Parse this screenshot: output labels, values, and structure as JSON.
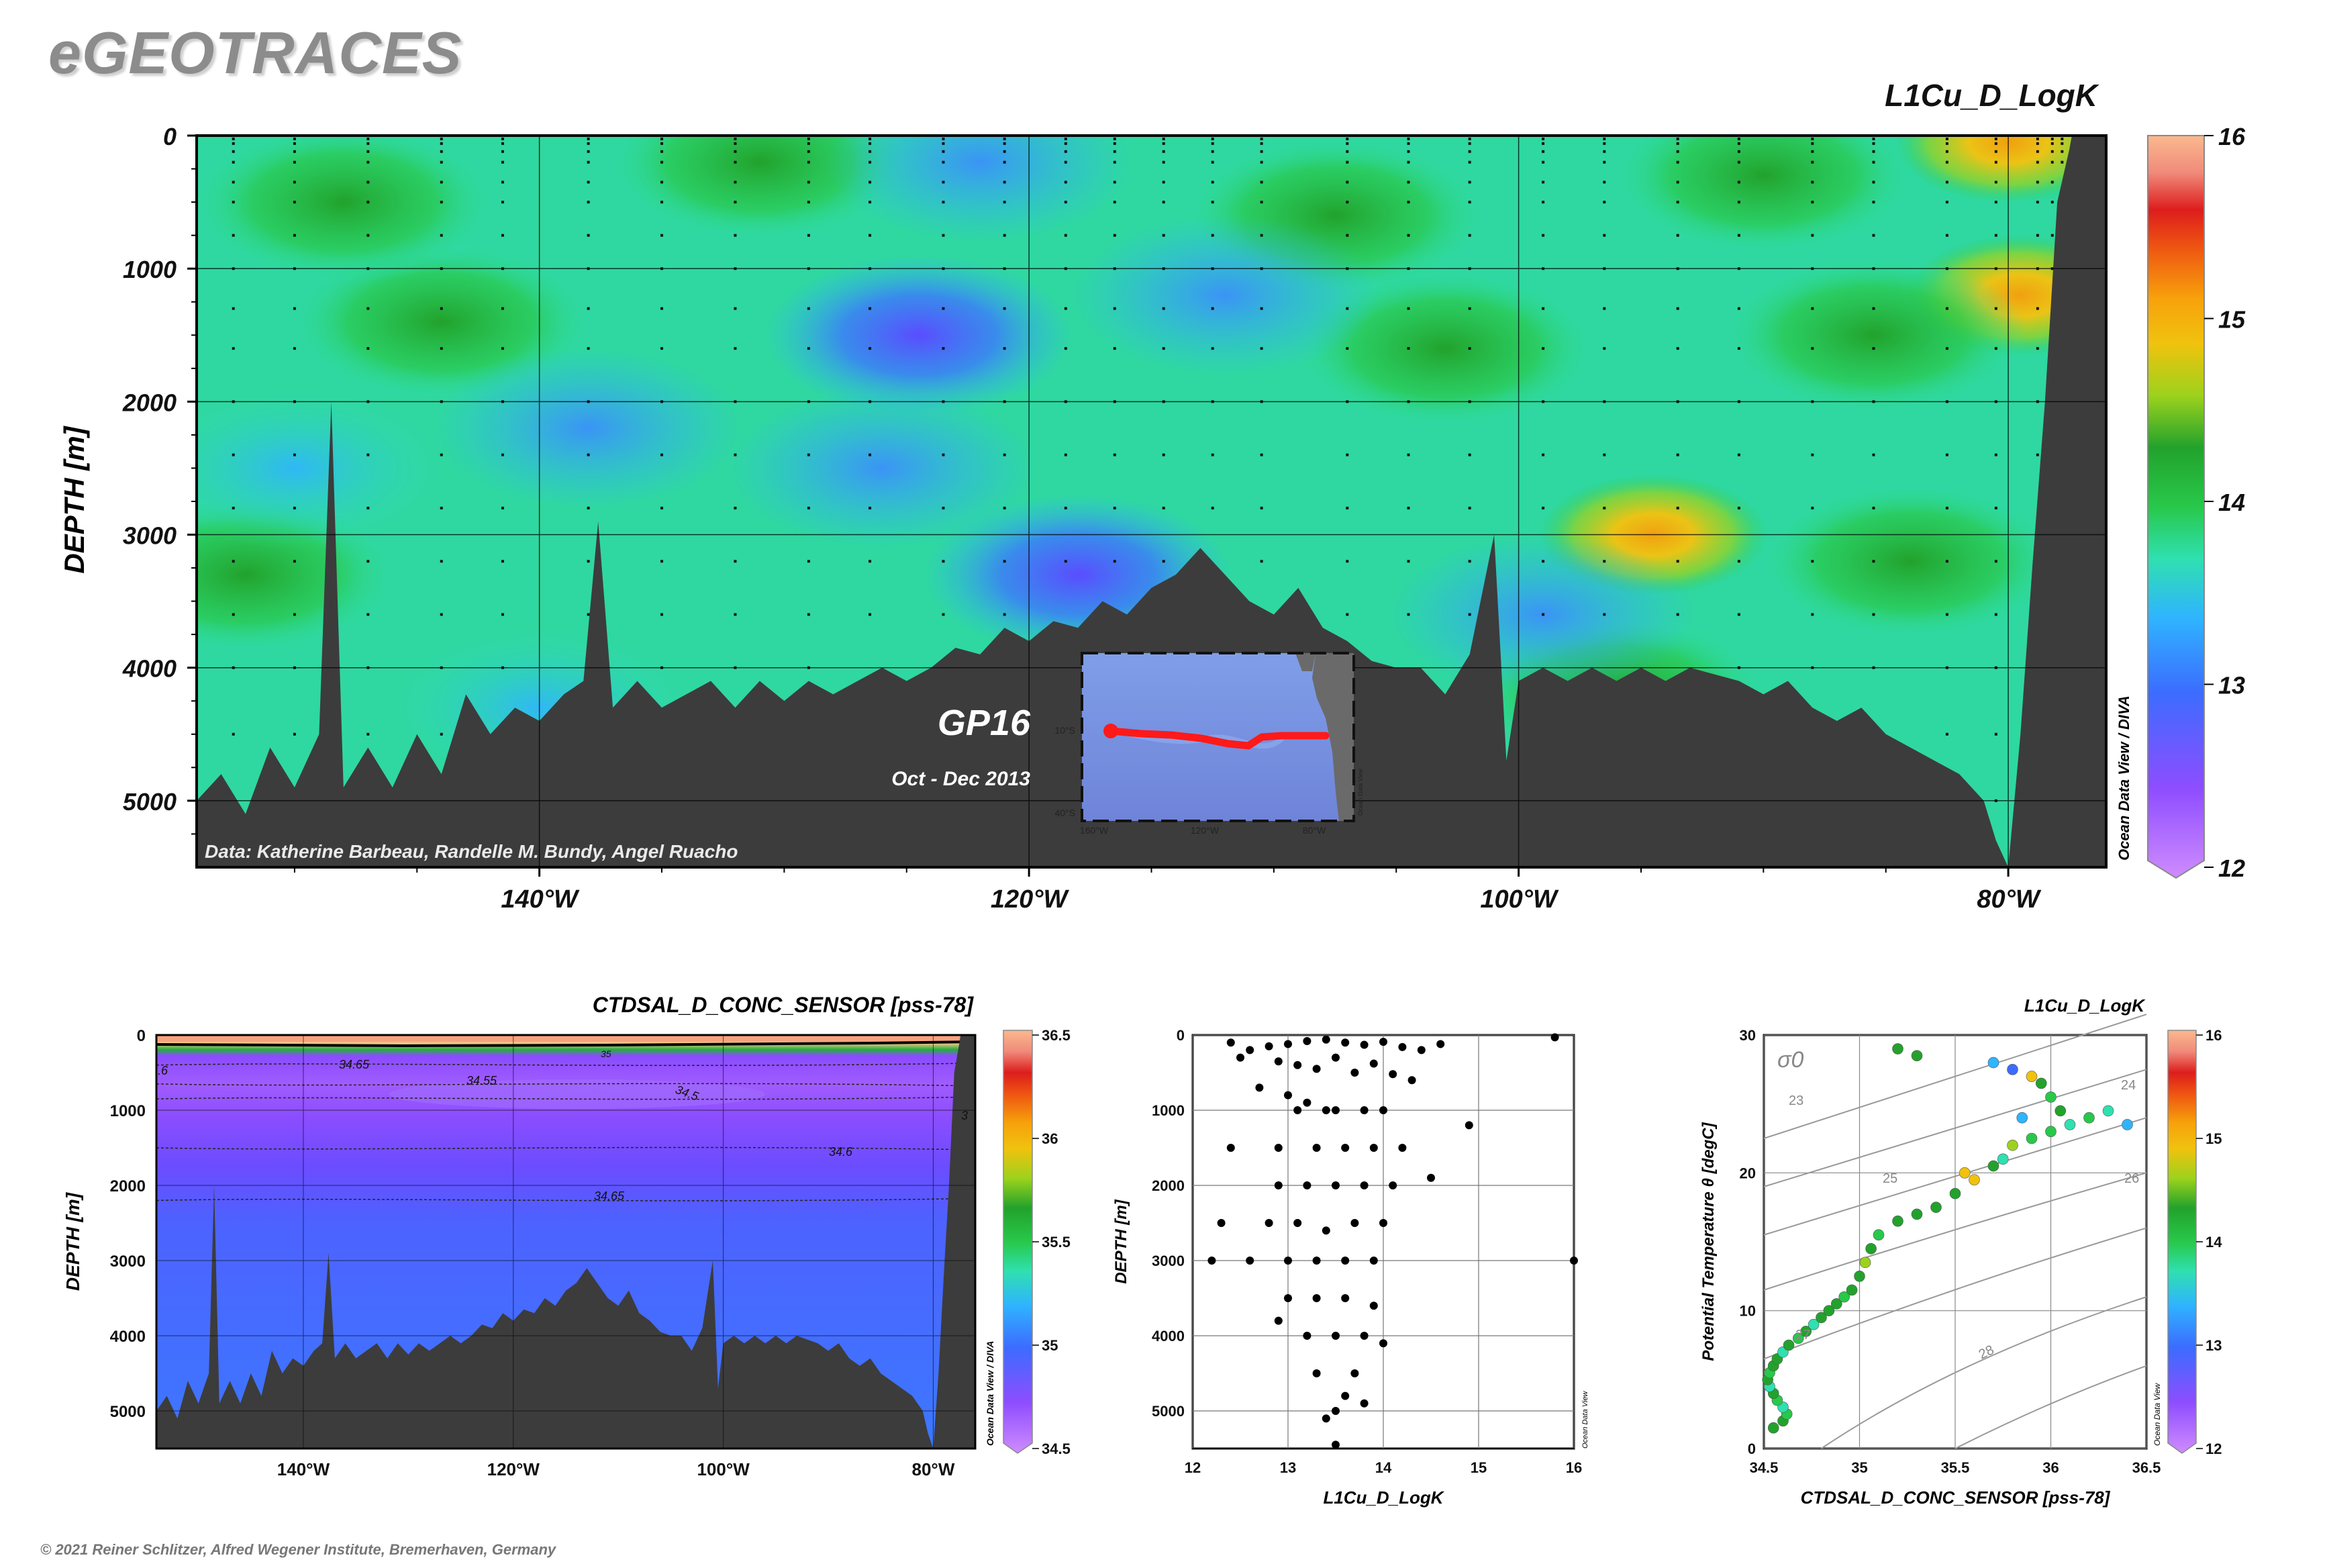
{
  "app": {
    "title": "eGEOTRACES",
    "footer": "© 2021 Reiner Schlitzer, Alfred Wegener Institute, Bremerhaven, Germany"
  },
  "colors": {
    "bathymetry": "#3c3c3c",
    "colormap": [
      "#cf8cff",
      "#8e4dff",
      "#3c6cff",
      "#2fb4ff",
      "#2fe0b0",
      "#28c84a",
      "#22a22c",
      "#9dd21c",
      "#f0c20e",
      "#f7a20b",
      "#ee5412",
      "#dd1d1d",
      "#f08a7a",
      "#fbb98e"
    ],
    "track": "#ff1a1a"
  },
  "main_section": {
    "title": "L1Cu_D_LogK",
    "ylabel": "DEPTH [m]",
    "y_ticks": [
      "0",
      "1000",
      "2000",
      "3000",
      "4000",
      "5000"
    ],
    "x_ticks": [
      "140°W",
      "120°W",
      "100°W",
      "80°W"
    ],
    "data_credit": "Data: Katherine Barbeau, Randelle M. Bundy, Angel Ruacho",
    "cruise": "GP16",
    "dates": "Oct - Dec 2013",
    "watermark": "Ocean Data View / DIVA",
    "colorbar_ticks": [
      "16",
      "15",
      "14",
      "13",
      "12"
    ],
    "inset_map": {
      "lat_labels": [
        "10°S",
        "40°S"
      ],
      "lon_labels": [
        "160°W",
        "120°W",
        "80°W"
      ],
      "watermark": "Ocean Data View"
    }
  },
  "salinity_section": {
    "title": "CTDSAL_D_CONC_SENSOR [pss-78]",
    "ylabel": "DEPTH [m]",
    "y_ticks": [
      "0",
      "1000",
      "2000",
      "3000",
      "4000",
      "5000"
    ],
    "x_ticks": [
      "140°W",
      "120°W",
      "100°W",
      "80°W"
    ],
    "contour_labels": [
      "34.65",
      "34.55",
      "34.5",
      "34.6",
      "34.65",
      "35",
      ".6",
      "3"
    ],
    "watermark": "Ocean Data View / DIVA",
    "colorbar_ticks": [
      "36.5",
      "36",
      "35.5",
      "35",
      "34.5"
    ]
  },
  "profile_plot": {
    "xlabel": "L1Cu_D_LogK",
    "ylabel": "DEPTH [m]",
    "x_ticks": [
      "12",
      "13",
      "14",
      "15",
      "16"
    ],
    "y_ticks": [
      "0",
      "1000",
      "2000",
      "3000",
      "4000",
      "5000"
    ],
    "watermark": "Ocean Data View"
  },
  "ts_plot": {
    "title": "L1Cu_D_LogK",
    "xlabel": "CTDSAL_D_CONC_SENSOR [pss-78]",
    "ylabel": "Potential Temperature θ [degC]",
    "x_ticks": [
      "34.5",
      "35",
      "35.5",
      "36",
      "36.5"
    ],
    "y_ticks": [
      "0",
      "10",
      "20",
      "30"
    ],
    "sigma_label": "σ0",
    "isopycnal_labels": [
      "23",
      "24",
      "25",
      "26",
      "27",
      "28"
    ],
    "watermark": "Ocean Data View",
    "colorbar_ticks": [
      "16",
      "15",
      "14",
      "13",
      "12"
    ]
  },
  "chart_data": [
    {
      "type": "heatmap",
      "title": "L1Cu_D_LogK",
      "ylabel": "DEPTH [m]",
      "x_unit": "longitude (°W)",
      "xlim": [
        -154,
        -76
      ],
      "ylim": [
        5500,
        0
      ],
      "clim": [
        12,
        16
      ],
      "features": [
        {
          "lon": -94.5,
          "depth": 3000,
          "value": 15.0
        },
        {
          "lon": -80.0,
          "depth": 50,
          "value": 14.8
        },
        {
          "lon": -79.5,
          "depth": 1200,
          "value": 14.5
        },
        {
          "lon": -124.5,
          "depth": 1500,
          "value": 12.8
        },
        {
          "lon": -126.0,
          "depth": 2500,
          "value": 13.3
        },
        {
          "lon": -118.0,
          "depth": 3300,
          "value": 12.9
        },
        {
          "lon": -144.0,
          "depth": 1400,
          "value": 13.8
        },
        {
          "lon": -148.0,
          "depth": 500,
          "value": 13.8
        },
        {
          "lon": -131.0,
          "depth": 200,
          "value": 13.9
        },
        {
          "lon": -107.5,
          "depth": 600,
          "value": 13.9
        },
        {
          "lon": -103.0,
          "depth": 1600,
          "value": 13.9
        },
        {
          "lon": -90.0,
          "depth": 300,
          "value": 13.8
        },
        {
          "lon": -85.5,
          "depth": 1500,
          "value": 13.8
        },
        {
          "lon": -84.0,
          "depth": 3200,
          "value": 13.8
        },
        {
          "lon": -152.0,
          "depth": 3300,
          "value": 13.8
        },
        {
          "lon": -140.0,
          "depth": 4300,
          "value": 13.6
        },
        {
          "lon": -96.0,
          "depth": 4200,
          "value": 13.7
        },
        {
          "lon": -150.0,
          "depth": 2500,
          "value": 13.6
        },
        {
          "lon": -122.0,
          "depth": 200,
          "value": 13.2
        },
        {
          "lon": -112.0,
          "depth": 1200,
          "value": 13.2
        },
        {
          "lon": -99.0,
          "depth": 3600,
          "value": 13.1
        },
        {
          "lon": -138.0,
          "depth": 2200,
          "value": 13.3
        }
      ],
      "bathymetry": [
        [
          -154,
          5000
        ],
        [
          -153,
          4800
        ],
        [
          -152,
          5100
        ],
        [
          -151,
          4600
        ],
        [
          -150,
          4900
        ],
        [
          -149,
          4500
        ],
        [
          -148.5,
          2000
        ],
        [
          -148,
          4900
        ],
        [
          -147,
          4600
        ],
        [
          -146,
          4900
        ],
        [
          -145,
          4500
        ],
        [
          -144,
          4800
        ],
        [
          -143,
          4200
        ],
        [
          -142,
          4500
        ],
        [
          -141,
          4300
        ],
        [
          -140,
          4400
        ],
        [
          -139,
          4200
        ],
        [
          -138.2,
          4100
        ],
        [
          -137.6,
          2900
        ],
        [
          -137,
          4300
        ],
        [
          -136,
          4100
        ],
        [
          -135,
          4300
        ],
        [
          -134,
          4200
        ],
        [
          -133,
          4100
        ],
        [
          -132,
          4300
        ],
        [
          -131,
          4100
        ],
        [
          -130,
          4250
        ],
        [
          -129,
          4100
        ],
        [
          -128,
          4200
        ],
        [
          -127,
          4100
        ],
        [
          -126,
          4000
        ],
        [
          -125,
          4100
        ],
        [
          -124,
          4000
        ],
        [
          -123,
          3850
        ],
        [
          -122,
          3900
        ],
        [
          -121,
          3700
        ],
        [
          -120,
          3800
        ],
        [
          -119,
          3650
        ],
        [
          -118,
          3700
        ],
        [
          -117,
          3500
        ],
        [
          -116,
          3600
        ],
        [
          -115,
          3400
        ],
        [
          -114,
          3300
        ],
        [
          -113,
          3100
        ],
        [
          -112,
          3300
        ],
        [
          -111,
          3500
        ],
        [
          -110,
          3600
        ],
        [
          -109,
          3400
        ],
        [
          -108,
          3700
        ],
        [
          -107,
          3800
        ],
        [
          -106,
          3950
        ],
        [
          -105,
          4000
        ],
        [
          -104,
          4000
        ],
        [
          -103,
          4200
        ],
        [
          -102,
          3900
        ],
        [
          -101,
          3000
        ],
        [
          -100.5,
          4700
        ],
        [
          -100,
          4100
        ],
        [
          -99,
          4000
        ],
        [
          -98,
          4100
        ],
        [
          -97,
          4000
        ],
        [
          -96,
          4100
        ],
        [
          -95,
          4000
        ],
        [
          -94,
          4100
        ],
        [
          -93,
          4000
        ],
        [
          -92,
          4050
        ],
        [
          -91,
          4100
        ],
        [
          -90,
          4200
        ],
        [
          -89,
          4100
        ],
        [
          -88,
          4300
        ],
        [
          -87,
          4400
        ],
        [
          -86,
          4300
        ],
        [
          -85,
          4500
        ],
        [
          -84,
          4600
        ],
        [
          -83,
          4700
        ],
        [
          -82,
          4800
        ],
        [
          -81,
          5000
        ],
        [
          -80.5,
          5300
        ],
        [
          -80,
          5500
        ],
        [
          -79.5,
          4500
        ],
        [
          -79,
          3200
        ],
        [
          -78.5,
          2000
        ],
        [
          -78,
          500
        ],
        [
          -77.5,
          100
        ],
        [
          -77.4,
          0
        ]
      ]
    },
    {
      "type": "heatmap",
      "title": "CTDSAL_D_CONC_SENSOR [pss-78]",
      "ylabel": "DEPTH [m]",
      "xlim": [
        -154,
        -76
      ],
      "ylim": [
        5500,
        0
      ],
      "clim": [
        34.5,
        36.5
      ],
      "contours": [
        {
          "level": 34.65,
          "depth_at_140W": 400
        },
        {
          "level": 34.55,
          "depth_at_140W": 650
        },
        {
          "level": 34.5,
          "depth_at_140W": 850
        },
        {
          "level": 34.6,
          "depth_at_140W": 1500
        },
        {
          "level": 34.65,
          "depth_at_140W": 2200
        }
      ]
    },
    {
      "type": "scatter",
      "xlabel": "L1Cu_D_LogK",
      "ylabel": "DEPTH [m]",
      "xlim": [
        12,
        16
      ],
      "ylim": [
        5500,
        0
      ],
      "points": [
        [
          12.4,
          100
        ],
        [
          12.6,
          200
        ],
        [
          12.8,
          150
        ],
        [
          13.0,
          120
        ],
        [
          13.2,
          80
        ],
        [
          13.4,
          60
        ],
        [
          13.6,
          100
        ],
        [
          13.8,
          130
        ],
        [
          14.0,
          90
        ],
        [
          14.2,
          160
        ],
        [
          14.4,
          200
        ],
        [
          14.6,
          120
        ],
        [
          15.8,
          30
        ],
        [
          12.5,
          300
        ],
        [
          12.9,
          350
        ],
        [
          13.1,
          400
        ],
        [
          13.3,
          450
        ],
        [
          13.5,
          300
        ],
        [
          13.7,
          500
        ],
        [
          13.9,
          380
        ],
        [
          14.1,
          520
        ],
        [
          14.3,
          600
        ],
        [
          12.7,
          700
        ],
        [
          13.0,
          800
        ],
        [
          13.2,
          900
        ],
        [
          13.5,
          1000
        ],
        [
          13.8,
          1000
        ],
        [
          14.0,
          1000
        ],
        [
          13.4,
          1000
        ],
        [
          13.1,
          1000
        ],
        [
          14.9,
          1200
        ],
        [
          12.4,
          1500
        ],
        [
          12.9,
          1500
        ],
        [
          13.3,
          1500
        ],
        [
          13.6,
          1500
        ],
        [
          13.9,
          1500
        ],
        [
          14.2,
          1500
        ],
        [
          14.5,
          1900
        ],
        [
          12.9,
          2000
        ],
        [
          13.2,
          2000
        ],
        [
          13.5,
          2000
        ],
        [
          13.8,
          2000
        ],
        [
          14.1,
          2000
        ],
        [
          12.8,
          2500
        ],
        [
          13.1,
          2500
        ],
        [
          13.4,
          2600
        ],
        [
          13.7,
          2500
        ],
        [
          14.0,
          2500
        ],
        [
          12.3,
          2500
        ],
        [
          12.2,
          3000
        ],
        [
          12.6,
          3000
        ],
        [
          13.0,
          3000
        ],
        [
          13.3,
          3000
        ],
        [
          13.6,
          3000
        ],
        [
          13.9,
          3000
        ],
        [
          16.0,
          3000
        ],
        [
          13.0,
          3500
        ],
        [
          13.3,
          3500
        ],
        [
          13.6,
          3500
        ],
        [
          13.9,
          3600
        ],
        [
          12.9,
          3800
        ],
        [
          13.2,
          4000
        ],
        [
          13.5,
          4000
        ],
        [
          13.8,
          4000
        ],
        [
          14.0,
          4100
        ],
        [
          13.3,
          4500
        ],
        [
          13.7,
          4500
        ],
        [
          13.6,
          4800
        ],
        [
          13.8,
          4900
        ],
        [
          13.5,
          5000
        ],
        [
          13.4,
          5100
        ],
        [
          13.5,
          5450
        ]
      ]
    },
    {
      "type": "scatter",
      "title": "L1Cu_D_LogK",
      "xlabel": "CTDSAL_D_CONC_SENSOR [pss-78]",
      "ylabel": "Potential Temperature θ [degC]",
      "xlim": [
        34.5,
        36.5
      ],
      "ylim": [
        0,
        30
      ],
      "clim": [
        12,
        16
      ],
      "points": [
        [
          34.55,
          1.5,
          13.8
        ],
        [
          34.6,
          2.0,
          13.8
        ],
        [
          34.62,
          2.5,
          13.5
        ],
        [
          34.6,
          3.0,
          13.2
        ],
        [
          34.57,
          3.5,
          13.6
        ],
        [
          34.55,
          4.0,
          13.8
        ],
        [
          34.53,
          4.5,
          13.1
        ],
        [
          34.52,
          5.0,
          13.8
        ],
        [
          34.53,
          5.5,
          13.4
        ],
        [
          34.55,
          6.0,
          13.8
        ],
        [
          34.57,
          6.5,
          13.7
        ],
        [
          34.6,
          7.0,
          13.2
        ],
        [
          34.63,
          7.5,
          13.8
        ],
        [
          34.68,
          8.0,
          13.6
        ],
        [
          34.72,
          8.5,
          13.8
        ],
        [
          34.76,
          9.0,
          13.3
        ],
        [
          34.8,
          9.5,
          13.9
        ],
        [
          34.84,
          10.0,
          13.7
        ],
        [
          34.88,
          10.5,
          13.9
        ],
        [
          34.92,
          11.0,
          13.6
        ],
        [
          34.96,
          11.5,
          13.9
        ],
        [
          35.0,
          12.5,
          13.8
        ],
        [
          35.03,
          13.5,
          14.0
        ],
        [
          35.06,
          14.5,
          13.8
        ],
        [
          35.1,
          15.5,
          13.5
        ],
        [
          35.2,
          16.5,
          13.9
        ],
        [
          35.3,
          17.0,
          13.8
        ],
        [
          35.4,
          17.5,
          13.7
        ],
        [
          35.5,
          18.5,
          13.9
        ],
        [
          35.6,
          19.5,
          14.5
        ],
        [
          35.7,
          20.5,
          13.8
        ],
        [
          35.75,
          21.0,
          13.2
        ],
        [
          35.8,
          22.0,
          14.0
        ],
        [
          35.9,
          22.5,
          13.4
        ],
        [
          36.0,
          23.0,
          13.5
        ],
        [
          36.1,
          23.5,
          13.2
        ],
        [
          36.2,
          24.0,
          13.6
        ],
        [
          36.3,
          24.5,
          13.2
        ],
        [
          36.4,
          23.5,
          12.8
        ],
        [
          36.0,
          25.5,
          13.4
        ],
        [
          35.95,
          26.5,
          13.8
        ],
        [
          35.8,
          27.5,
          12.5
        ],
        [
          35.3,
          28.5,
          13.9
        ],
        [
          35.2,
          29.0,
          13.8
        ],
        [
          35.7,
          28.0,
          13.0
        ],
        [
          35.9,
          27.0,
          14.5
        ],
        [
          36.05,
          24.5,
          13.9
        ],
        [
          35.85,
          24.0,
          13.0
        ],
        [
          35.55,
          20.0,
          14.4
        ]
      ]
    }
  ]
}
